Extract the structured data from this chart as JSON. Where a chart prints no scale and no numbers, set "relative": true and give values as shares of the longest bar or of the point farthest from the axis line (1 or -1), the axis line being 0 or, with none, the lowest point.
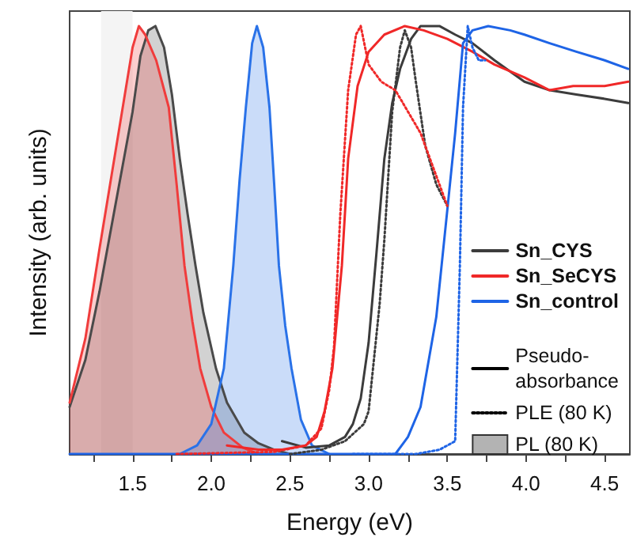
{
  "chart_data": {
    "type": "line",
    "relative": true,
    "xlabel": "Energy (eV)",
    "ylabel": "Intensity (arb. units)",
    "xlim": [
      1.1,
      4.66
    ],
    "xticks": [
      {
        "value": 1.25,
        "label": null
      },
      1.5,
      {
        "value": 1.75,
        "label": null
      },
      {
        "value": 2,
        "label": "2.0"
      },
      {
        "value": 2.25,
        "label": null
      },
      2.5,
      {
        "value": 2.75,
        "label": null
      },
      {
        "value": 3,
        "label": "3.0"
      },
      {
        "value": 3.25,
        "label": null
      },
      3.5,
      {
        "value": 3.75,
        "label": null
      },
      {
        "value": 4,
        "label": "4.0"
      },
      {
        "value": 4.25,
        "label": null
      },
      4.5
    ],
    "grid": false,
    "legend": "right",
    "marker": "none",
    "bands": [
      {
        "axis": "x",
        "from": 1.3,
        "to": 1.5,
        "color": "#f4f4f4"
      }
    ],
    "series": [
      {
        "type": "area",
        "color": "#4a4a4a",
        "line_style": "solid",
        "x": [
          1.1,
          1.2,
          1.29,
          1.5,
          1.55,
          1.6,
          1.645,
          1.7,
          1.75,
          1.8,
          1.85,
          1.9,
          1.95,
          2.03,
          2.1,
          2.21,
          2.3,
          2.4,
          2.5
        ],
        "values": [
          0.11,
          0.22,
          0.38,
          0.8,
          0.93,
          0.99,
          1.0,
          0.95,
          0.84,
          0.69,
          0.56,
          0.44,
          0.33,
          0.2,
          0.12,
          0.05,
          0.025,
          0.01,
          0.0
        ]
      },
      {
        "type": "area",
        "color": "#f03c3c",
        "line_style": "solid",
        "x": [
          1.1,
          1.2,
          1.29,
          1.5,
          1.54,
          1.58,
          1.65,
          1.73,
          1.78,
          1.83,
          1.88,
          1.93,
          2.0,
          2.08,
          2.2,
          2.3
        ],
        "values": [
          0.12,
          0.27,
          0.48,
          0.95,
          1.0,
          0.98,
          0.92,
          0.81,
          0.63,
          0.44,
          0.31,
          0.2,
          0.11,
          0.05,
          0.015,
          0.0
        ]
      },
      {
        "type": "area",
        "color": "#2a72e8",
        "line_style": "solid",
        "x": [
          1.8,
          1.91,
          2.0,
          2.08,
          2.14,
          2.18,
          2.22,
          2.26,
          2.29,
          2.33,
          2.37,
          2.4,
          2.43,
          2.47,
          2.51,
          2.57,
          2.64,
          2.75
        ],
        "values": [
          0,
          0.02,
          0.07,
          0.2,
          0.44,
          0.64,
          0.81,
          0.96,
          1.0,
          0.95,
          0.81,
          0.63,
          0.44,
          0.3,
          0.2,
          0.08,
          0.02,
          0.0
        ]
      },
      {
        "name": "Sn_CYS",
        "type": "line",
        "color": "#3c3c3c",
        "line_style": "solid",
        "x": [
          2.45,
          2.6,
          2.75,
          2.85,
          2.9,
          2.95,
          3.0,
          3.05,
          3.1,
          3.15,
          3.2,
          3.27,
          3.33,
          3.45,
          3.55,
          3.66,
          3.8,
          3.99,
          4.15,
          4.32,
          4.5,
          4.65
        ],
        "values": [
          0.03,
          0.015,
          0.02,
          0.04,
          0.07,
          0.13,
          0.26,
          0.47,
          0.69,
          0.82,
          0.9,
          0.97,
          1.0,
          1.0,
          0.98,
          0.96,
          0.92,
          0.87,
          0.85,
          0.84,
          0.83,
          0.82
        ]
      },
      {
        "name": "Sn_SeCYS",
        "type": "line",
        "color": "#f02828",
        "line_style": "solid",
        "x": [
          2.1,
          2.3,
          2.45,
          2.6,
          2.67,
          2.72,
          2.77,
          2.83,
          2.87,
          2.93,
          3.0,
          3.1,
          3.23,
          3.35,
          3.5,
          3.66,
          3.8,
          3.99,
          4.15,
          4.3,
          4.5,
          4.65
        ],
        "values": [
          0.02,
          0.01,
          0.01,
          0.02,
          0.04,
          0.1,
          0.2,
          0.44,
          0.69,
          0.86,
          0.94,
          0.98,
          1.0,
          0.99,
          0.97,
          0.94,
          0.91,
          0.88,
          0.85,
          0.86,
          0.86,
          0.87
        ]
      },
      {
        "name": "Sn_control",
        "type": "line",
        "color": "#1e64e6",
        "line_style": "solid",
        "x": [
          1.1,
          2.0,
          3.1,
          3.17,
          3.25,
          3.33,
          3.43,
          3.5,
          3.55,
          3.6,
          3.66,
          3.76,
          3.9,
          3.99,
          4.15,
          4.32,
          4.5,
          4.65
        ],
        "values": [
          0,
          0,
          0,
          0,
          0.04,
          0.11,
          0.32,
          0.57,
          0.75,
          0.96,
          0.99,
          1.0,
          0.99,
          0.98,
          0.96,
          0.94,
          0.92,
          0.9
        ]
      },
      {
        "type": "line",
        "color": "#3c3c3c",
        "line_style": "dotted",
        "x": [
          2.5,
          2.7,
          2.85,
          2.97,
          3.0,
          3.07,
          3.1,
          3.15,
          3.2,
          3.23,
          3.27,
          3.3,
          3.36,
          3.43,
          3.5
        ],
        "values": [
          0.0,
          0.01,
          0.03,
          0.07,
          0.1,
          0.35,
          0.5,
          0.8,
          0.95,
          0.99,
          0.95,
          0.87,
          0.72,
          0.63,
          0.58
        ]
      },
      {
        "type": "line",
        "color": "#f02828",
        "line_style": "dotted",
        "x": [
          1.78,
          2.4,
          2.6,
          2.7,
          2.75,
          2.78,
          2.82,
          2.87,
          2.92,
          2.95,
          3.0,
          3.08,
          3.17,
          3.25,
          3.33,
          3.42,
          3.5
        ],
        "values": [
          0,
          0.005,
          0.02,
          0.06,
          0.15,
          0.25,
          0.56,
          0.85,
          0.98,
          1.0,
          0.91,
          0.87,
          0.85,
          0.8,
          0.75,
          0.66,
          0.58
        ]
      },
      {
        "type": "line",
        "color": "#1e64e6",
        "line_style": "dotted",
        "x": [
          2.9,
          3.3,
          3.45,
          3.55,
          3.58,
          3.6,
          3.63,
          3.66,
          3.7,
          3.74
        ],
        "values": [
          0,
          0,
          0.01,
          0.03,
          0.44,
          0.81,
          1.0,
          0.95,
          0.92,
          0.92
        ]
      },
      {
        "name": "Pseudo-absorbance",
        "color": "#000000",
        "line_style": "solid"
      },
      {
        "name": "PLE (80 K)",
        "color": "#000000",
        "line_style": "dotted"
      },
      {
        "name": "PL (80 K)",
        "type": "area",
        "color": "#808080",
        "line_style": "solid"
      }
    ]
  }
}
